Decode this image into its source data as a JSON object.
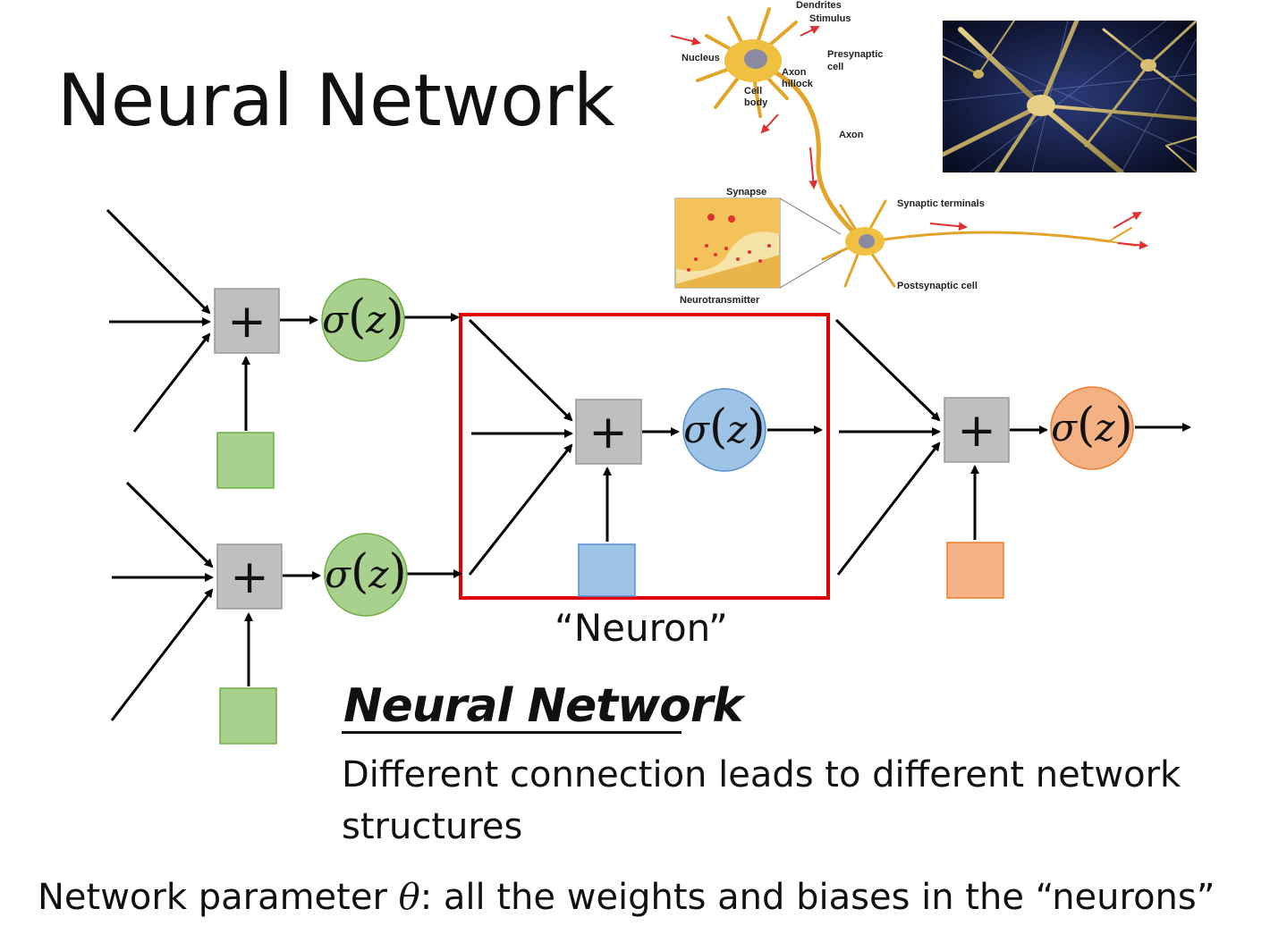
{
  "title": "Neural Network",
  "neuron_label": "“Neuron”",
  "section_heading": "Neural Network",
  "description": "Different connection leads to different network structures",
  "parameter_line": {
    "prefix": "Network parameter ",
    "symbol": "θ",
    "suffix": ": all the weights and biases in the “neurons”"
  },
  "node": {
    "sum_symbol": "+",
    "activation_sigma": "σ",
    "activation_open": "(",
    "activation_var": "z",
    "activation_close": ")"
  },
  "colors": {
    "green_fill": "#a9d18e",
    "green_edge": "#6fae47",
    "blue_fill": "#9dc3e6",
    "blue_edge": "#5b8fcf",
    "orange_fill": "#f4b183",
    "orange_edge": "#ed7d31",
    "sum_box": "#bfbfbf",
    "highlight": "#e00000"
  },
  "bio_labels": {
    "dendrites": "Dendrites",
    "stimulus": "Stimulus",
    "nucleus": "Nucleus",
    "presynaptic": "Presynaptic",
    "presynaptic_2": "cell",
    "axon_hillock": "Axon",
    "axon_hillock_2": "hillock",
    "cell_body": "Cell",
    "cell_body_2": "body",
    "axon": "Axon",
    "synapse": "Synapse",
    "synaptic_terminals": "Synaptic terminals",
    "postsynaptic": "Postsynaptic cell",
    "neurotransmitter": "Neurotransmitter"
  }
}
